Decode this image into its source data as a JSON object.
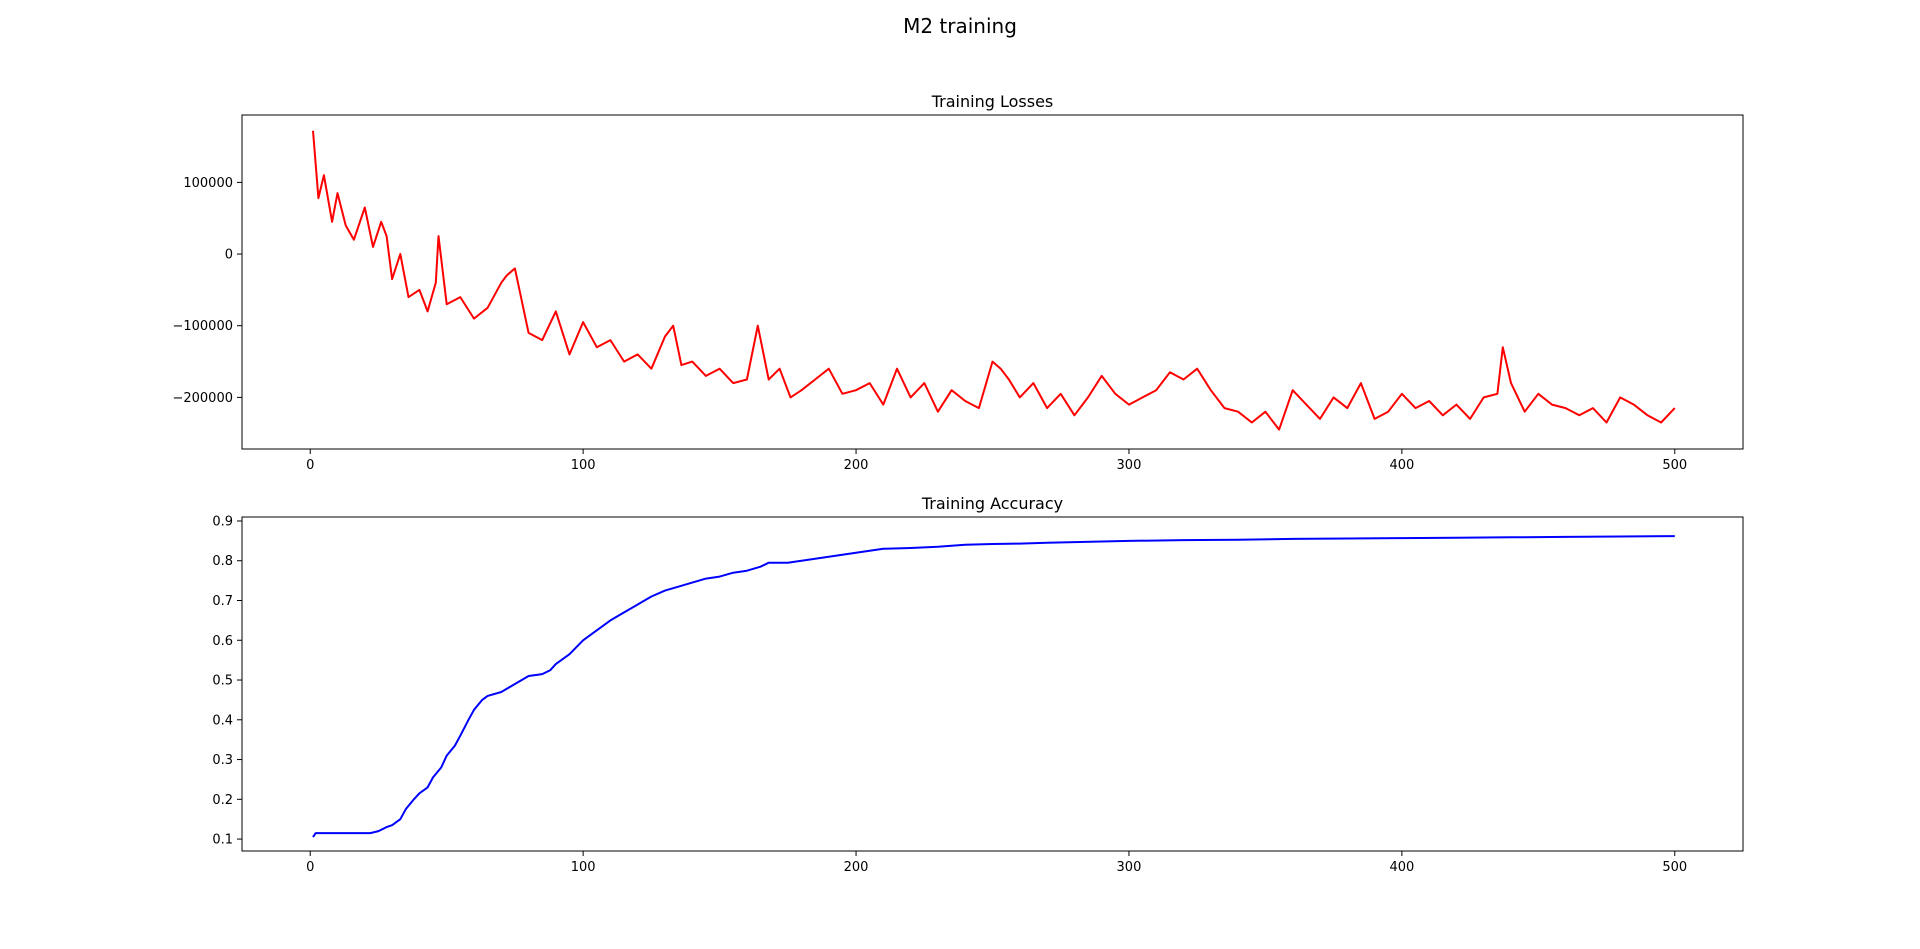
{
  "figure": {
    "title": "M2 training"
  },
  "chart_data": [
    {
      "type": "line",
      "title": "Training Losses",
      "xlabel": "",
      "ylabel": "",
      "xlim": [
        -25,
        525
      ],
      "ylim": [
        -272000,
        194000
      ],
      "xticks": [
        0,
        100,
        200,
        300,
        400,
        500
      ],
      "xtick_labels": [
        "0",
        "100",
        "200",
        "300",
        "400",
        "500"
      ],
      "yticks": [
        -200000,
        -100000,
        0,
        100000
      ],
      "ytick_labels": [
        "−200000",
        "−100000",
        "0",
        "100000"
      ],
      "grid": false,
      "legend": null,
      "series": [
        {
          "color": "#ff0000",
          "x": [
            1,
            3,
            5,
            8,
            10,
            13,
            16,
            20,
            23,
            26,
            28,
            30,
            33,
            36,
            40,
            43,
            46,
            47,
            50,
            55,
            60,
            65,
            70,
            72,
            75,
            80,
            85,
            90,
            95,
            100,
            105,
            110,
            115,
            120,
            125,
            130,
            133,
            136,
            140,
            145,
            150,
            155,
            160,
            164,
            168,
            172,
            176,
            180,
            185,
            190,
            195,
            200,
            205,
            210,
            215,
            220,
            225,
            230,
            235,
            240,
            245,
            250,
            253,
            256,
            260,
            265,
            270,
            275,
            280,
            285,
            290,
            295,
            300,
            305,
            310,
            315,
            320,
            325,
            330,
            335,
            340,
            345,
            350,
            355,
            360,
            365,
            370,
            375,
            380,
            385,
            390,
            395,
            400,
            405,
            410,
            415,
            420,
            425,
            430,
            435,
            437,
            440,
            445,
            450,
            455,
            460,
            465,
            470,
            475,
            480,
            485,
            490,
            495,
            500
          ],
          "values": [
            172000,
            78000,
            110000,
            45000,
            85000,
            40000,
            20000,
            65000,
            10000,
            45000,
            25000,
            -35000,
            0,
            -60000,
            -50000,
            -80000,
            -40000,
            25000,
            -70000,
            -60000,
            -90000,
            -75000,
            -40000,
            -30000,
            -20000,
            -110000,
            -120000,
            -80000,
            -140000,
            -95000,
            -130000,
            -120000,
            -150000,
            -140000,
            -160000,
            -115000,
            -100000,
            -155000,
            -150000,
            -170000,
            -160000,
            -180000,
            -175000,
            -100000,
            -175000,
            -160000,
            -200000,
            -190000,
            -175000,
            -160000,
            -195000,
            -190000,
            -180000,
            -210000,
            -160000,
            -200000,
            -180000,
            -220000,
            -190000,
            -205000,
            -215000,
            -150000,
            -160000,
            -175000,
            -200000,
            -180000,
            -215000,
            -195000,
            -225000,
            -200000,
            -170000,
            -195000,
            -210000,
            -200000,
            -190000,
            -165000,
            -175000,
            -160000,
            -190000,
            -215000,
            -220000,
            -235000,
            -220000,
            -245000,
            -190000,
            -210000,
            -230000,
            -200000,
            -215000,
            -180000,
            -230000,
            -220000,
            -195000,
            -215000,
            -205000,
            -225000,
            -210000,
            -230000,
            -200000,
            -195000,
            -130000,
            -180000,
            -220000,
            -195000,
            -210000,
            -215000,
            -225000,
            -215000,
            -235000,
            -200000,
            -210000,
            -225000,
            -235000,
            -215000
          ]
        }
      ]
    },
    {
      "type": "line",
      "title": "Training Accuracy",
      "xlabel": "",
      "ylabel": "",
      "xlim": [
        -25,
        525
      ],
      "ylim": [
        0.07,
        0.91
      ],
      "xticks": [
        0,
        100,
        200,
        300,
        400,
        500
      ],
      "xtick_labels": [
        "0",
        "100",
        "200",
        "300",
        "400",
        "500"
      ],
      "yticks": [
        0.1,
        0.2,
        0.3,
        0.4,
        0.5,
        0.6,
        0.7,
        0.8,
        0.9
      ],
      "ytick_labels": [
        "0.1",
        "0.2",
        "0.3",
        "0.4",
        "0.5",
        "0.6",
        "0.7",
        "0.8",
        "0.9"
      ],
      "grid": false,
      "legend": null,
      "series": [
        {
          "color": "#0000ff",
          "x": [
            1,
            2,
            5,
            10,
            15,
            20,
            22,
            25,
            28,
            30,
            33,
            35,
            38,
            40,
            43,
            45,
            48,
            50,
            53,
            55,
            58,
            60,
            63,
            65,
            70,
            75,
            80,
            85,
            88,
            90,
            95,
            100,
            105,
            110,
            115,
            120,
            125,
            130,
            135,
            140,
            145,
            150,
            155,
            160,
            165,
            168,
            175,
            180,
            190,
            200,
            210,
            220,
            230,
            240,
            250,
            260,
            270,
            280,
            300,
            320,
            340,
            360,
            380,
            400,
            420,
            440,
            460,
            480,
            500
          ],
          "values": [
            0.105,
            0.115,
            0.115,
            0.115,
            0.115,
            0.115,
            0.115,
            0.12,
            0.13,
            0.135,
            0.15,
            0.175,
            0.2,
            0.215,
            0.23,
            0.255,
            0.28,
            0.31,
            0.335,
            0.36,
            0.4,
            0.425,
            0.45,
            0.46,
            0.47,
            0.49,
            0.51,
            0.515,
            0.525,
            0.54,
            0.565,
            0.6,
            0.625,
            0.65,
            0.67,
            0.69,
            0.71,
            0.725,
            0.735,
            0.745,
            0.755,
            0.76,
            0.77,
            0.775,
            0.785,
            0.795,
            0.795,
            0.8,
            0.81,
            0.82,
            0.83,
            0.832,
            0.835,
            0.84,
            0.842,
            0.843,
            0.845,
            0.847,
            0.85,
            0.852,
            0.853,
            0.855,
            0.856,
            0.857,
            0.858,
            0.859,
            0.86,
            0.861,
            0.862
          ]
        }
      ]
    }
  ]
}
